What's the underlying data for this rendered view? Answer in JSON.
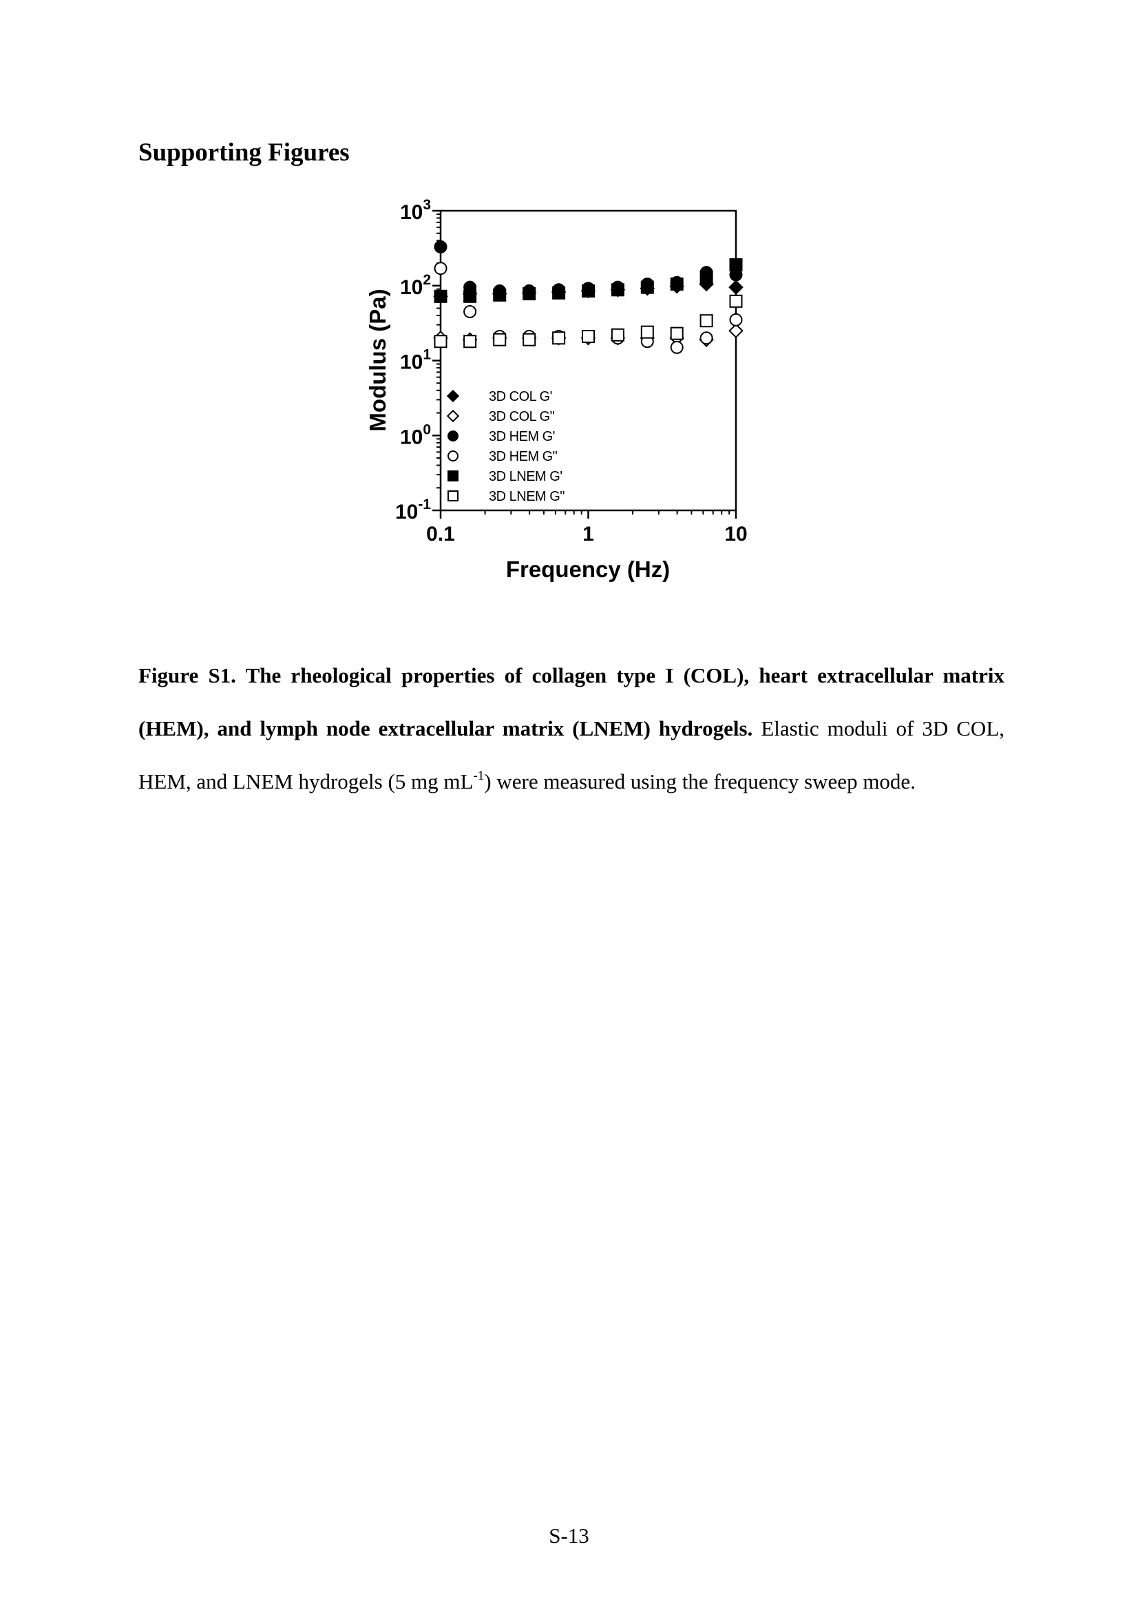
{
  "heading": "Supporting Figures",
  "chart_data": {
    "type": "scatter",
    "xlabel": "Frequency (Hz)",
    "ylabel": "Modulus (Pa)",
    "xscale": "log",
    "yscale": "log",
    "xlim": [
      0.1,
      10
    ],
    "ylim": [
      0.1,
      1000
    ],
    "x_ticks": [
      {
        "value": 0.1,
        "label": "0.1"
      },
      {
        "value": 1,
        "label": "1"
      },
      {
        "value": 10,
        "label": "10"
      }
    ],
    "y_ticks": [
      {
        "value": 1000,
        "base": "10",
        "exp": "3"
      },
      {
        "value": 100,
        "base": "10",
        "exp": "2"
      },
      {
        "value": 10,
        "base": "10",
        "exp": "1"
      },
      {
        "value": 1,
        "base": "10",
        "exp": "0"
      },
      {
        "value": 0.1,
        "base": "10",
        "exp": "-1"
      }
    ],
    "legend_position": "bottom-left",
    "grid": false,
    "x": [
      0.1,
      0.158,
      0.251,
      0.398,
      0.631,
      1.0,
      1.585,
      2.512,
      3.981,
      6.31,
      10.0
    ],
    "series": [
      {
        "name": "3D COL G'",
        "marker": "diamond",
        "filled": true,
        "values": [
          72,
          78,
          78,
          80,
          82,
          85,
          88,
          92,
          98,
          105,
          95
        ]
      },
      {
        "name": "3D COL G\"",
        "marker": "diamond",
        "filled": false,
        "values": [
          20,
          19,
          20,
          20,
          20,
          20,
          20,
          20,
          20,
          19,
          25
        ]
      },
      {
        "name": "3D HEM G'",
        "marker": "circle",
        "filled": true,
        "values": [
          330,
          95,
          85,
          85,
          88,
          92,
          95,
          105,
          110,
          150,
          140
        ]
      },
      {
        "name": "3D HEM G\"",
        "marker": "circle",
        "filled": false,
        "values": [
          170,
          45,
          21,
          21,
          21,
          21,
          20,
          18,
          15,
          20,
          35
        ]
      },
      {
        "name": "3D LNEM G'",
        "marker": "square",
        "filled": true,
        "values": [
          72,
          72,
          75,
          78,
          80,
          85,
          88,
          95,
          105,
          130,
          190
        ]
      },
      {
        "name": "3D LNEM G\"",
        "marker": "square",
        "filled": false,
        "values": [
          18,
          18,
          19,
          19,
          20,
          21,
          22,
          24,
          23,
          34,
          62
        ]
      }
    ]
  },
  "caption": {
    "bold": "Figure S1. The rheological properties of collagen type I (COL), heart extracellular matrix (HEM), and lymph node extracellular matrix (LNEM) hydrogels.",
    "text_before_sup": " Elastic moduli of 3D COL, HEM, and LNEM hydrogels (5 mg mL",
    "sup": "-1",
    "text_after_sup": ") were measured using the frequency sweep mode."
  },
  "page_number": "S-13"
}
